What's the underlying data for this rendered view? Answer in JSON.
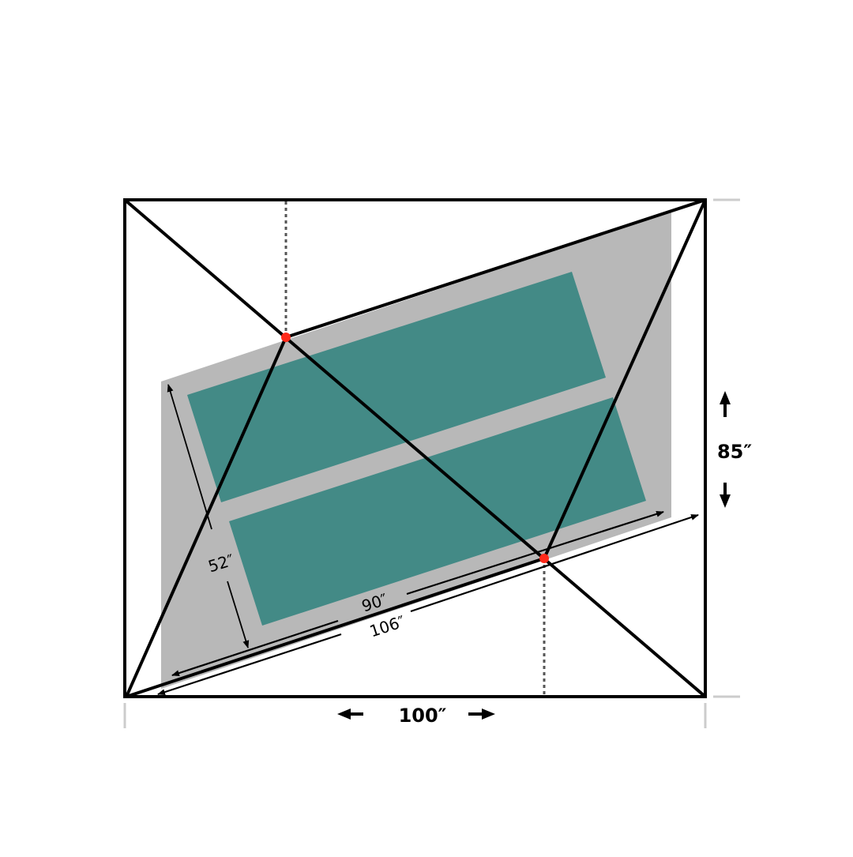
{
  "labels": {
    "width": "100″",
    "height": "85″",
    "side": "52″",
    "inner_length": "90″",
    "outer_length": "106″"
  },
  "colors": {
    "frame": "#000000",
    "footprint": "#b8b8b8",
    "pad": "#438a86",
    "stake_point": "#ff2a1a",
    "dotted": "#555555",
    "tick": "#cccccc"
  }
}
